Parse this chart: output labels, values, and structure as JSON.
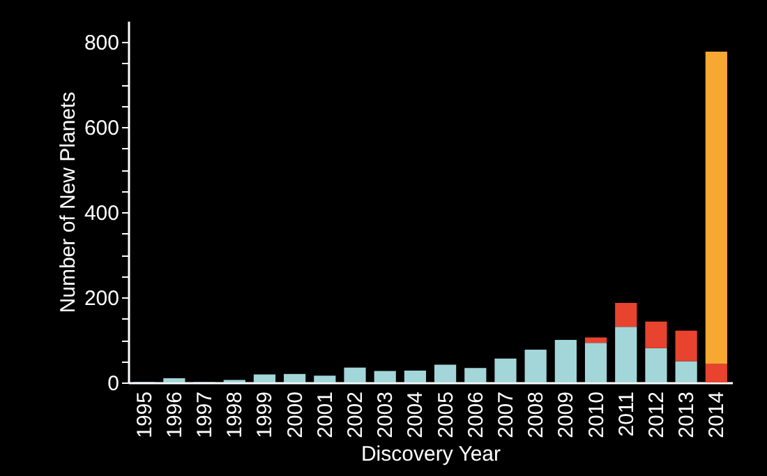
{
  "chart_data": {
    "type": "bar",
    "stacked": true,
    "xlabel": "Discovery Year",
    "ylabel": "Number of New Planets",
    "categories": [
      "1995",
      "1996",
      "1997",
      "1998",
      "1999",
      "2000",
      "2001",
      "2002",
      "2003",
      "2004",
      "2005",
      "2006",
      "2007",
      "2008",
      "2009",
      "2010",
      "2011",
      "2012",
      "2013",
      "2014"
    ],
    "series": [
      {
        "color": "#a3d6d9",
        "values": [
          1,
          10,
          1,
          6,
          19,
          20,
          16,
          35,
          27,
          28,
          42,
          34,
          56,
          77,
          100,
          93,
          131,
          81,
          50,
          0
        ]
      },
      {
        "color": "#e8432e",
        "values": [
          0,
          0,
          0,
          0,
          0,
          0,
          0,
          0,
          0,
          0,
          0,
          0,
          0,
          0,
          0,
          13,
          56,
          62,
          72,
          44
        ]
      },
      {
        "color": "#f7a832",
        "values": [
          0,
          0,
          0,
          0,
          0,
          0,
          0,
          0,
          0,
          0,
          0,
          0,
          0,
          0,
          0,
          0,
          0,
          0,
          0,
          734
        ]
      }
    ],
    "ylim": [
      0,
      850
    ],
    "yticks": [
      0,
      {
        "value": 50,
        "label": null
      },
      {
        "value": 100,
        "label": null
      },
      {
        "value": 150,
        "label": null
      },
      200,
      {
        "value": 250,
        "label": null
      },
      {
        "value": 300,
        "label": null
      },
      {
        "value": 350,
        "label": null
      },
      400,
      {
        "value": 450,
        "label": null
      },
      {
        "value": 500,
        "label": null
      },
      {
        "value": 550,
        "label": null
      },
      600,
      {
        "value": 650,
        "label": null
      },
      {
        "value": 700,
        "label": null
      },
      {
        "value": 750,
        "label": null
      },
      800
    ],
    "grid": false,
    "legend": false
  }
}
